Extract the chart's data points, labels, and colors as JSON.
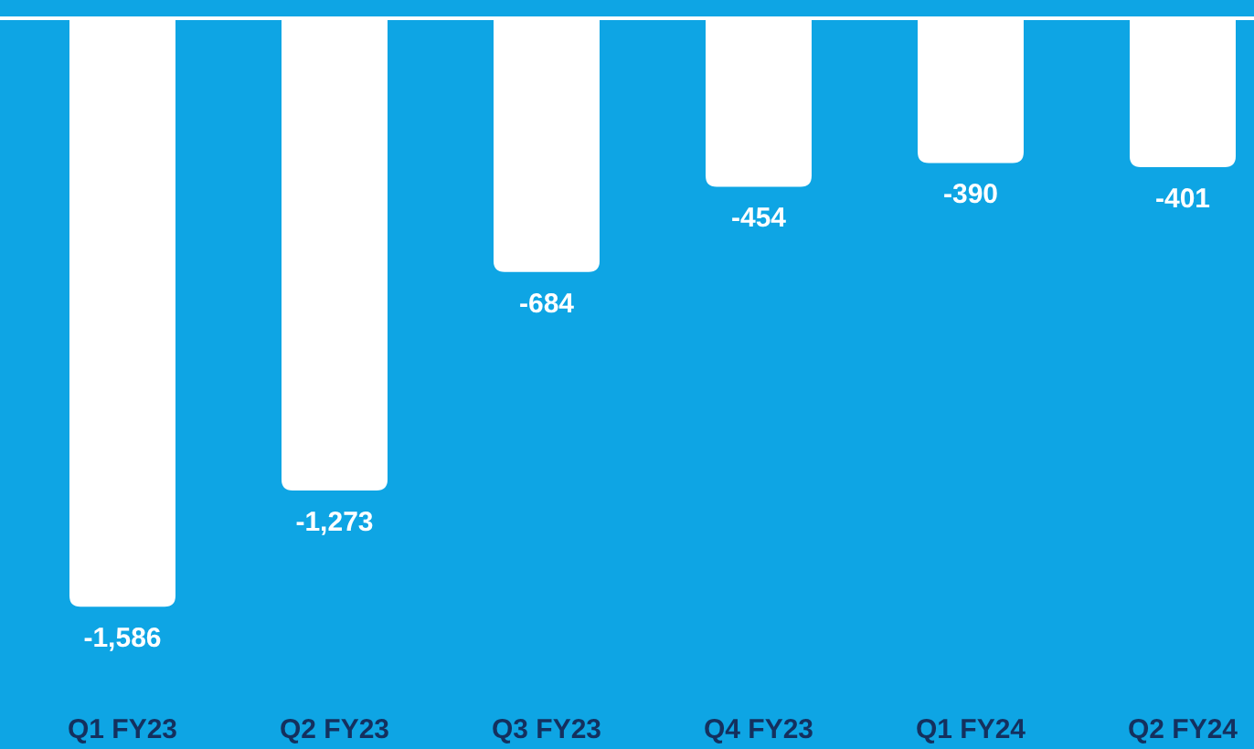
{
  "chart_data": {
    "type": "bar",
    "categories": [
      "Q1 FY23",
      "Q2 FY23",
      "Q3 FY23",
      "Q4 FY23",
      "Q1 FY24",
      "Q2 FY24"
    ],
    "values": [
      -1586,
      -1273,
      -684,
      -454,
      -390,
      -401
    ],
    "color": "#ffffff",
    "value_labels": [
      "-1,586",
      "-1,273",
      "-684",
      "-454",
      "-390",
      "-401"
    ]
  }
}
